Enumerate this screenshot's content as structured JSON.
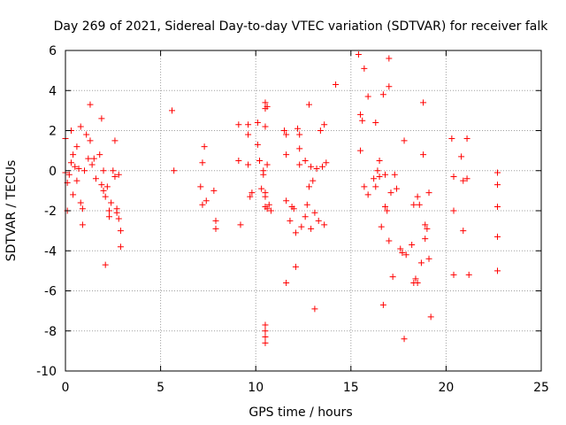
{
  "chart_data": {
    "type": "scatter",
    "title": "Day 269 of 2021, Sidereal Day-to-day VTEC variation (SDTVAR) for receiver falk",
    "xlabel": "GPS time / hours",
    "ylabel": "SDTVAR / TECUs",
    "xlim": [
      0,
      25
    ],
    "ylim": [
      -10,
      6
    ],
    "xticks": [
      0,
      5,
      10,
      15,
      20,
      25
    ],
    "yticks": [
      -10,
      -8,
      -6,
      -4,
      -2,
      0,
      2,
      4,
      6
    ],
    "grid": true,
    "marker": "+",
    "series": [
      {
        "name": "SDTVAR",
        "color": "#ff0000",
        "points": [
          [
            0.0,
            1.6
          ],
          [
            0.0,
            -0.1
          ],
          [
            0.1,
            -0.6
          ],
          [
            0.1,
            -2.0
          ],
          [
            0.2,
            -0.2
          ],
          [
            0.3,
            2.0
          ],
          [
            0.3,
            0.4
          ],
          [
            0.4,
            0.8
          ],
          [
            0.4,
            -1.2
          ],
          [
            0.5,
            0.2
          ],
          [
            0.6,
            1.2
          ],
          [
            0.6,
            -0.5
          ],
          [
            0.7,
            0.1
          ],
          [
            0.8,
            2.2
          ],
          [
            0.8,
            -1.6
          ],
          [
            0.9,
            -1.9
          ],
          [
            0.9,
            -2.7
          ],
          [
            1.0,
            0.0
          ],
          [
            1.1,
            1.8
          ],
          [
            1.2,
            0.6
          ],
          [
            1.3,
            1.5
          ],
          [
            1.3,
            3.3
          ],
          [
            1.4,
            0.3
          ],
          [
            1.5,
            0.6
          ],
          [
            1.6,
            -0.4
          ],
          [
            1.8,
            0.8
          ],
          [
            1.9,
            2.6
          ],
          [
            1.9,
            -0.7
          ],
          [
            2.0,
            0.0
          ],
          [
            2.0,
            -1.0
          ],
          [
            2.1,
            -1.3
          ],
          [
            2.1,
            -4.7
          ],
          [
            2.2,
            -0.8
          ],
          [
            2.3,
            -2.0
          ],
          [
            2.3,
            -2.3
          ],
          [
            2.4,
            -1.6
          ],
          [
            2.5,
            0.0
          ],
          [
            2.6,
            1.5
          ],
          [
            2.6,
            -0.3
          ],
          [
            2.7,
            -1.9
          ],
          [
            2.7,
            -2.1
          ],
          [
            2.8,
            -0.2
          ],
          [
            2.8,
            -2.4
          ],
          [
            2.9,
            -3.0
          ],
          [
            2.9,
            -3.8
          ],
          [
            5.6,
            3.0
          ],
          [
            5.7,
            0.0
          ],
          [
            7.1,
            -0.8
          ],
          [
            7.2,
            0.4
          ],
          [
            7.2,
            -1.7
          ],
          [
            7.3,
            1.2
          ],
          [
            7.4,
            -1.5
          ],
          [
            7.8,
            -1.0
          ],
          [
            7.9,
            -2.5
          ],
          [
            7.9,
            -2.9
          ],
          [
            9.1,
            2.3
          ],
          [
            9.1,
            0.5
          ],
          [
            9.2,
            -2.7
          ],
          [
            9.6,
            2.3
          ],
          [
            9.6,
            1.8
          ],
          [
            9.6,
            0.3
          ],
          [
            9.7,
            -1.3
          ],
          [
            9.8,
            -1.1
          ],
          [
            10.1,
            2.4
          ],
          [
            10.1,
            1.3
          ],
          [
            10.2,
            0.5
          ],
          [
            10.3,
            -0.9
          ],
          [
            10.4,
            0.0
          ],
          [
            10.4,
            -0.2
          ],
          [
            10.5,
            3.4
          ],
          [
            10.5,
            3.1
          ],
          [
            10.5,
            2.2
          ],
          [
            10.5,
            -1.1
          ],
          [
            10.5,
            -1.3
          ],
          [
            10.5,
            -1.8
          ],
          [
            10.5,
            -7.7
          ],
          [
            10.5,
            -8.0
          ],
          [
            10.5,
            -8.3
          ],
          [
            10.5,
            -8.6
          ],
          [
            10.6,
            3.2
          ],
          [
            10.6,
            0.3
          ],
          [
            10.6,
            -1.9
          ],
          [
            10.7,
            -1.7
          ],
          [
            10.8,
            -2.0
          ],
          [
            11.5,
            2.0
          ],
          [
            11.6,
            1.8
          ],
          [
            11.6,
            0.8
          ],
          [
            11.6,
            -1.5
          ],
          [
            11.6,
            -5.6
          ],
          [
            11.8,
            -2.5
          ],
          [
            11.9,
            -1.8
          ],
          [
            12.0,
            -1.9
          ],
          [
            12.1,
            -3.1
          ],
          [
            12.1,
            -4.8
          ],
          [
            12.2,
            2.1
          ],
          [
            12.3,
            1.8
          ],
          [
            12.3,
            1.1
          ],
          [
            12.3,
            0.3
          ],
          [
            12.4,
            -2.8
          ],
          [
            12.6,
            0.5
          ],
          [
            12.6,
            -2.3
          ],
          [
            12.7,
            -1.7
          ],
          [
            12.8,
            3.3
          ],
          [
            12.8,
            -0.8
          ],
          [
            12.9,
            0.2
          ],
          [
            12.9,
            -2.9
          ],
          [
            13.0,
            -0.5
          ],
          [
            13.1,
            -2.1
          ],
          [
            13.1,
            -6.9
          ],
          [
            13.2,
            0.1
          ],
          [
            13.3,
            -2.5
          ],
          [
            13.4,
            2.0
          ],
          [
            13.5,
            0.2
          ],
          [
            13.6,
            2.3
          ],
          [
            13.6,
            -2.7
          ],
          [
            13.7,
            0.4
          ],
          [
            14.2,
            4.3
          ],
          [
            15.4,
            5.8
          ],
          [
            15.5,
            2.8
          ],
          [
            15.5,
            1.0
          ],
          [
            15.6,
            2.5
          ],
          [
            15.7,
            5.1
          ],
          [
            15.7,
            -0.8
          ],
          [
            15.9,
            3.7
          ],
          [
            15.9,
            -1.2
          ],
          [
            16.2,
            -0.4
          ],
          [
            16.3,
            2.4
          ],
          [
            16.3,
            -0.8
          ],
          [
            16.4,
            0.0
          ],
          [
            16.5,
            0.5
          ],
          [
            16.5,
            -0.3
          ],
          [
            16.6,
            -2.8
          ],
          [
            16.7,
            3.8
          ],
          [
            16.7,
            -6.7
          ],
          [
            16.8,
            -1.8
          ],
          [
            16.8,
            -0.2
          ],
          [
            16.9,
            -2.0
          ],
          [
            17.0,
            5.6
          ],
          [
            17.0,
            4.2
          ],
          [
            17.0,
            -3.5
          ],
          [
            17.1,
            -1.1
          ],
          [
            17.2,
            -5.3
          ],
          [
            17.3,
            -0.2
          ],
          [
            17.4,
            -0.9
          ],
          [
            17.6,
            -3.9
          ],
          [
            17.7,
            -4.1
          ],
          [
            17.8,
            1.5
          ],
          [
            17.8,
            -8.4
          ],
          [
            17.9,
            -4.2
          ],
          [
            18.2,
            -3.7
          ],
          [
            18.3,
            -1.7
          ],
          [
            18.3,
            -5.6
          ],
          [
            18.4,
            -5.4
          ],
          [
            18.5,
            -1.3
          ],
          [
            18.5,
            -5.6
          ],
          [
            18.6,
            -1.7
          ],
          [
            18.7,
            -4.6
          ],
          [
            18.8,
            3.4
          ],
          [
            18.8,
            0.8
          ],
          [
            18.9,
            -2.7
          ],
          [
            18.9,
            -3.4
          ],
          [
            19.0,
            -2.9
          ],
          [
            19.1,
            -1.1
          ],
          [
            19.1,
            -4.4
          ],
          [
            19.2,
            -7.3
          ],
          [
            20.3,
            1.6
          ],
          [
            20.4,
            -0.3
          ],
          [
            20.4,
            -2.0
          ],
          [
            20.4,
            -5.2
          ],
          [
            20.8,
            0.7
          ],
          [
            20.9,
            -0.5
          ],
          [
            20.9,
            -3.0
          ],
          [
            21.1,
            1.6
          ],
          [
            21.1,
            -0.4
          ],
          [
            21.2,
            -5.2
          ],
          [
            22.7,
            -0.1
          ],
          [
            22.7,
            -0.7
          ],
          [
            22.7,
            -1.8
          ],
          [
            22.7,
            -3.3
          ],
          [
            22.7,
            -5.0
          ]
        ]
      }
    ]
  }
}
